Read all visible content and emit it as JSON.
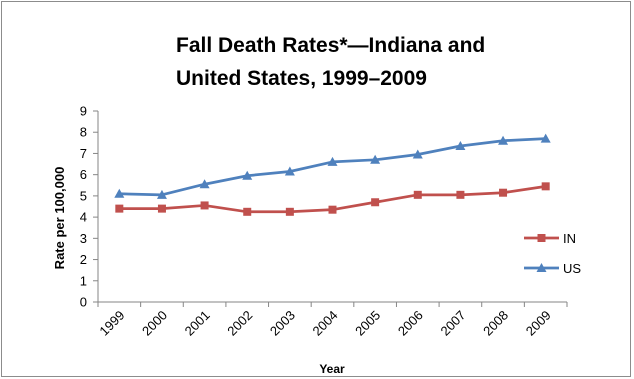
{
  "chart_data": {
    "type": "line",
    "title_line1": "Fall Death Rates*—Indiana and",
    "title_line2": "United States, 1999–2009",
    "xlabel": "Year",
    "ylabel": "Rate per 100,000",
    "categories": [
      "1999",
      "2000",
      "2001",
      "2002",
      "2003",
      "2004",
      "2005",
      "2006",
      "2007",
      "2008",
      "2009"
    ],
    "ylim": [
      0,
      9
    ],
    "yticks": [
      "0",
      "1",
      "2",
      "3",
      "4",
      "5",
      "6",
      "7",
      "8",
      "9"
    ],
    "grid": false,
    "legend_position": "right",
    "series": [
      {
        "name": "IN",
        "color": "#c0504d",
        "marker": "square",
        "values": [
          4.4,
          4.4,
          4.55,
          4.25,
          4.25,
          4.35,
          4.7,
          5.05,
          5.05,
          5.15,
          5.45
        ]
      },
      {
        "name": "US",
        "color": "#4f81bd",
        "marker": "triangle",
        "values": [
          5.1,
          5.05,
          5.55,
          5.95,
          6.15,
          6.6,
          6.7,
          6.95,
          7.35,
          7.6,
          7.7
        ]
      }
    ]
  }
}
